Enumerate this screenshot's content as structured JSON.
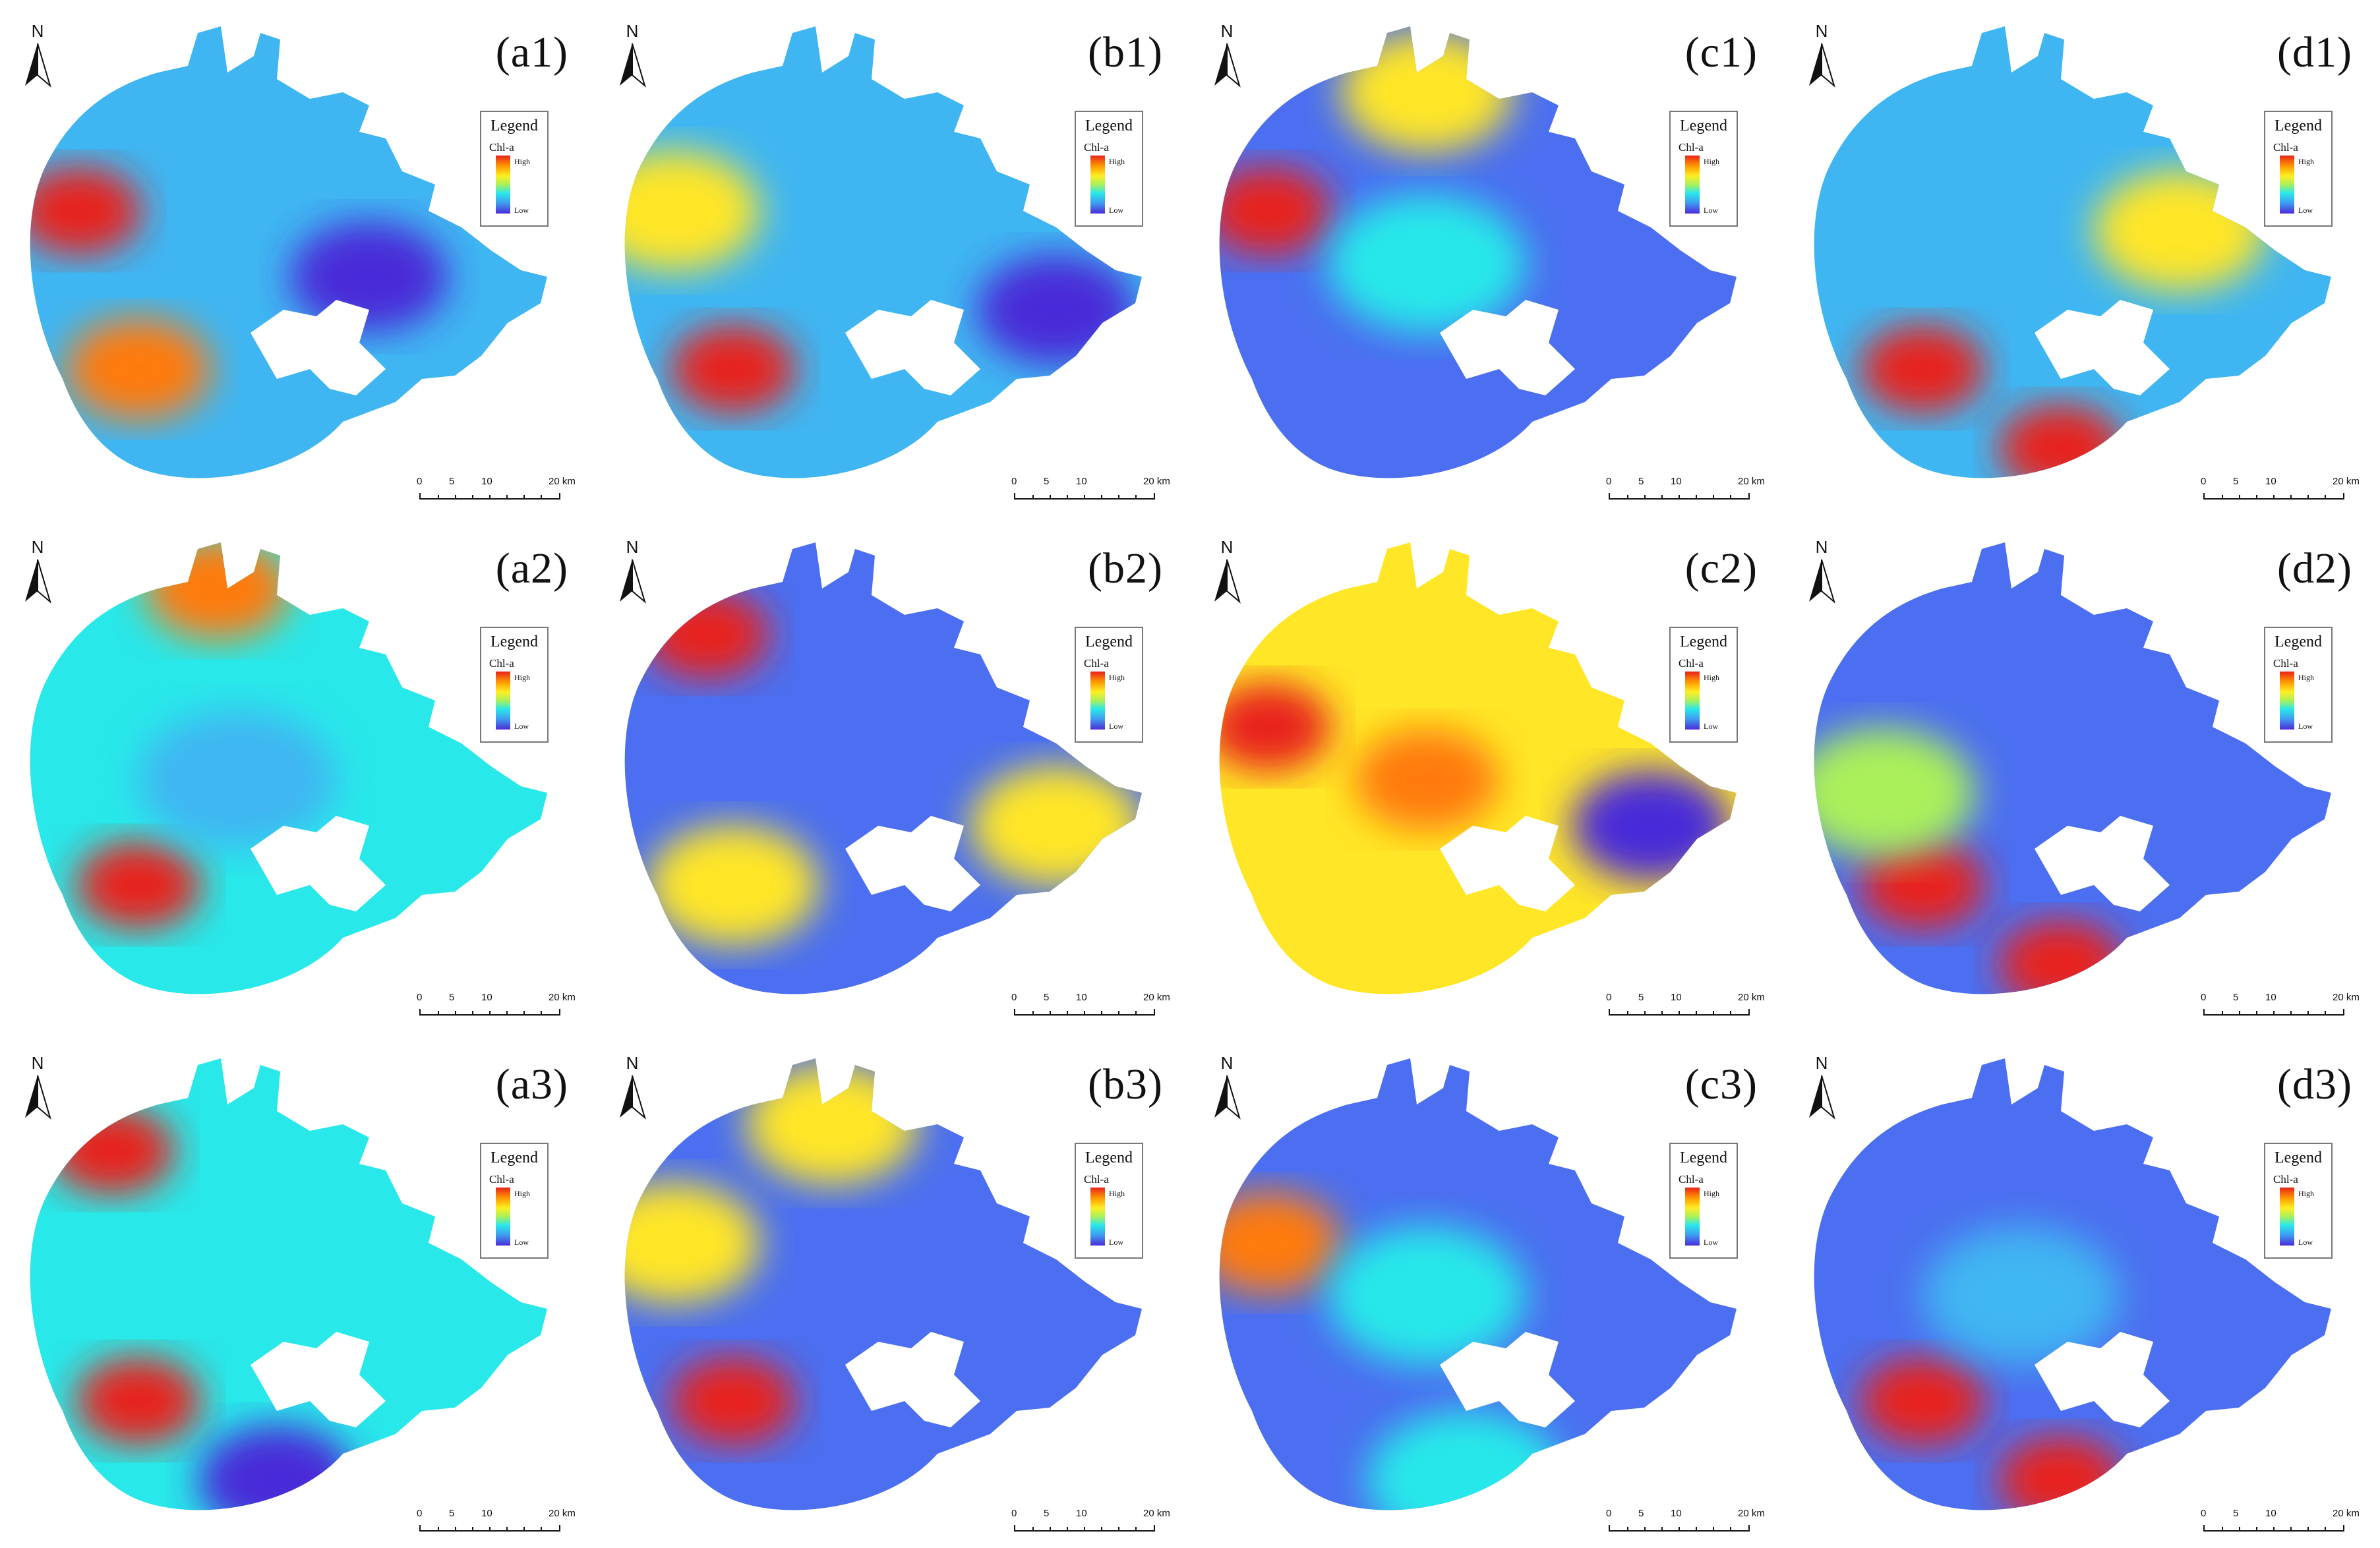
{
  "legend": {
    "title": "Legend",
    "layer": "Chl-a",
    "high": "High",
    "low": "Low"
  },
  "north_arrow": {
    "letter": "N",
    "icon": "north-arrow-icon"
  },
  "scale_bar": {
    "ticks": [
      "0",
      "5",
      "10",
      "20 km"
    ]
  },
  "colors": {
    "very_low": "#4a2bd8",
    "low": "#4b6ff0",
    "mid_low": "#3fb6f2",
    "mid": "#28e8ea",
    "mid_high": "#aaf05a",
    "high": "#ffe626",
    "very_high": "#ff7a10",
    "max": "#e8231a"
  },
  "panels": [
    {
      "id": "a1",
      "label": "(a1)",
      "base": "mid_low",
      "hotspots": [
        {
          "area": "west shore",
          "level": "max"
        },
        {
          "area": "south-west",
          "level": "very_high"
        },
        {
          "area": "east bay",
          "level": "very_low"
        }
      ]
    },
    {
      "id": "b1",
      "label": "(b1)",
      "base": "mid_low",
      "hotspots": [
        {
          "area": "south-west",
          "level": "max"
        },
        {
          "area": "west shore",
          "level": "high"
        },
        {
          "area": "east arm",
          "level": "very_low"
        }
      ]
    },
    {
      "id": "c1",
      "label": "(c1)",
      "base": "low",
      "hotspots": [
        {
          "area": "west shore",
          "level": "max"
        },
        {
          "area": "north",
          "level": "high"
        },
        {
          "area": "center",
          "level": "mid"
        }
      ]
    },
    {
      "id": "d1",
      "label": "(d1)",
      "base": "mid_low",
      "hotspots": [
        {
          "area": "south",
          "level": "max"
        },
        {
          "area": "south-west",
          "level": "max"
        },
        {
          "area": "east",
          "level": "high"
        }
      ]
    },
    {
      "id": "a2",
      "label": "(a2)",
      "base": "mid",
      "hotspots": [
        {
          "area": "south-west",
          "level": "max"
        },
        {
          "area": "north shore",
          "level": "very_high"
        },
        {
          "area": "center",
          "level": "mid_low"
        }
      ]
    },
    {
      "id": "b2",
      "label": "(b2)",
      "base": "low",
      "hotspots": [
        {
          "area": "north-west",
          "level": "max"
        },
        {
          "area": "south-west",
          "level": "high"
        },
        {
          "area": "east arm",
          "level": "high"
        }
      ]
    },
    {
      "id": "c2",
      "label": "(c2)",
      "base": "high",
      "hotspots": [
        {
          "area": "west shore",
          "level": "max"
        },
        {
          "area": "center",
          "level": "very_high"
        },
        {
          "area": "east arm",
          "level": "very_low"
        }
      ]
    },
    {
      "id": "d2",
      "label": "(d2)",
      "base": "low",
      "hotspots": [
        {
          "area": "south-west",
          "level": "max"
        },
        {
          "area": "south",
          "level": "max"
        },
        {
          "area": "west",
          "level": "mid_high"
        }
      ]
    },
    {
      "id": "a3",
      "label": "(a3)",
      "base": "mid",
      "hotspots": [
        {
          "area": "south-west",
          "level": "max"
        },
        {
          "area": "north-west",
          "level": "max"
        },
        {
          "area": "south",
          "level": "very_low"
        }
      ]
    },
    {
      "id": "b3",
      "label": "(b3)",
      "base": "low",
      "hotspots": [
        {
          "area": "south-west",
          "level": "max"
        },
        {
          "area": "west shore",
          "level": "high"
        },
        {
          "area": "north",
          "level": "high"
        }
      ]
    },
    {
      "id": "c3",
      "label": "(c3)",
      "base": "low",
      "hotspots": [
        {
          "area": "west shore",
          "level": "very_high"
        },
        {
          "area": "center",
          "level": "mid"
        },
        {
          "area": "south",
          "level": "mid"
        }
      ]
    },
    {
      "id": "d3",
      "label": "(d3)",
      "base": "low",
      "hotspots": [
        {
          "area": "south",
          "level": "max"
        },
        {
          "area": "south-west",
          "level": "max"
        },
        {
          "area": "center",
          "level": "mid_low"
        }
      ]
    }
  ]
}
